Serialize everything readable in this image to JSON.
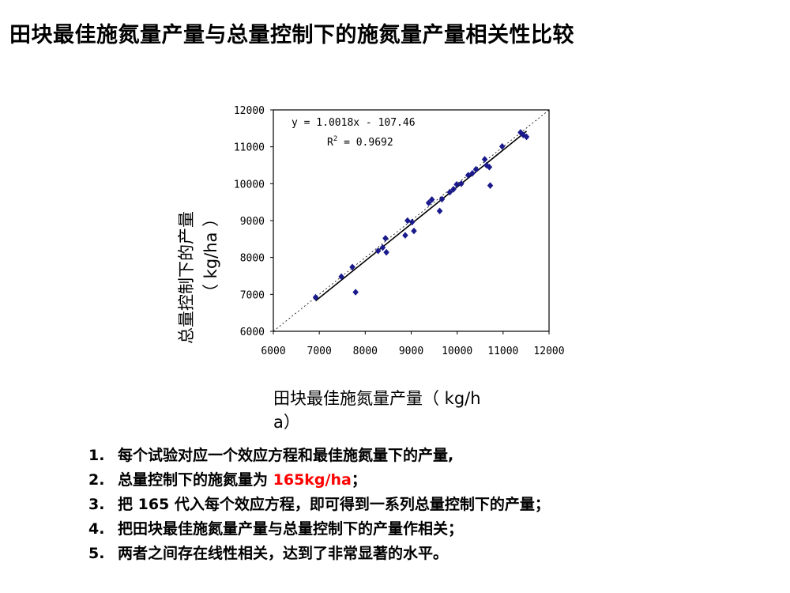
{
  "slide": {
    "title": "田块最佳施氮量产量与总量控制下的施氮量产量相关性比较"
  },
  "chart_data": {
    "type": "scatter",
    "equation": "y = 1.0018x - 107.46",
    "r2_label": "R",
    "r2_value": " = 0.9692",
    "xlabel": "田块最佳施氮量产量（ kg/ha）",
    "xlabel_line1": "田块最佳施氮量产量（ kg/h",
    "xlabel_line2": "a）",
    "ylabel_line1": "总量控制下的产量",
    "ylabel_line2": "（ kg/ha ）",
    "xlim": [
      6000,
      12000
    ],
    "ylim": [
      6000,
      12000
    ],
    "xticks": [
      "6000",
      "7000",
      "8000",
      "9000",
      "10000",
      "11000",
      "12000"
    ],
    "yticks": [
      "6000",
      "7000",
      "8000",
      "9000",
      "10000",
      "11000",
      "12000"
    ],
    "trendline": {
      "slope": 1.0018,
      "intercept": -107.46
    },
    "reference_line": "1:1 dashed",
    "marker_color": "#1a1a8c",
    "points": [
      {
        "x": 6920,
        "y": 6920
      },
      {
        "x": 7480,
        "y": 7480
      },
      {
        "x": 7720,
        "y": 7740
      },
      {
        "x": 7790,
        "y": 7060
      },
      {
        "x": 8280,
        "y": 8180
      },
      {
        "x": 8380,
        "y": 8270
      },
      {
        "x": 8440,
        "y": 8520
      },
      {
        "x": 8460,
        "y": 8140
      },
      {
        "x": 8870,
        "y": 8600
      },
      {
        "x": 8920,
        "y": 9000
      },
      {
        "x": 9020,
        "y": 8960
      },
      {
        "x": 9060,
        "y": 8720
      },
      {
        "x": 9380,
        "y": 9480
      },
      {
        "x": 9450,
        "y": 9570
      },
      {
        "x": 9620,
        "y": 9260
      },
      {
        "x": 9670,
        "y": 9580
      },
      {
        "x": 9840,
        "y": 9770
      },
      {
        "x": 9920,
        "y": 9850
      },
      {
        "x": 9990,
        "y": 9980
      },
      {
        "x": 10090,
        "y": 10000
      },
      {
        "x": 10240,
        "y": 10230
      },
      {
        "x": 10330,
        "y": 10280
      },
      {
        "x": 10410,
        "y": 10390
      },
      {
        "x": 10600,
        "y": 10660
      },
      {
        "x": 10640,
        "y": 10500
      },
      {
        "x": 10700,
        "y": 10450
      },
      {
        "x": 10720,
        "y": 9950
      },
      {
        "x": 10980,
        "y": 11010
      },
      {
        "x": 11380,
        "y": 11390
      },
      {
        "x": 11440,
        "y": 11320
      },
      {
        "x": 11510,
        "y": 11270
      }
    ]
  },
  "steps": [
    {
      "num": "1.",
      "text": "每个试验对应一个效应方程和最佳施氮量下的产量,"
    },
    {
      "num": "2.",
      "text_before": "总量控制下的施氮量为 ",
      "highlight": "165kg/ha",
      "text_after": "；"
    },
    {
      "num": "3.",
      "text": "把 165 代入每个效应方程，即可得到一系列总量控制下的产量；"
    },
    {
      "num": "4.",
      "text": "把田块最佳施氮量产量与总量控制下的产量作相关；"
    },
    {
      "num": "5.",
      "text": "两者之间存在线性相关，达到了非常显著的水平。"
    }
  ],
  "colors": {
    "highlight": "#ff0000",
    "marker": "#1a1a8c"
  }
}
